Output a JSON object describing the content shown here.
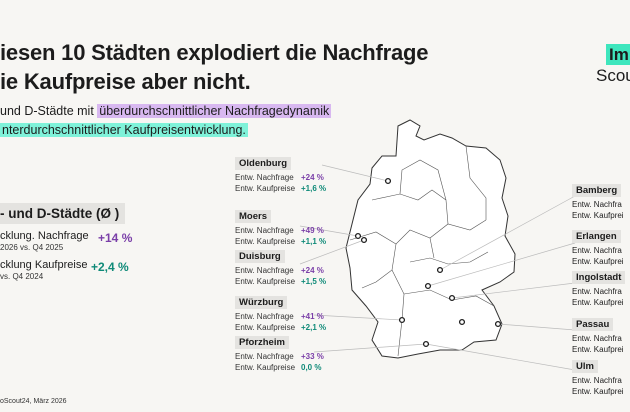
{
  "title": {
    "line1": "iesen 10 Städten explodiert die Nachfrage",
    "line2": "ie Kaufpreise aber nicht."
  },
  "logo": {
    "part1": "Im",
    "part2": "Scou"
  },
  "subtitle": {
    "prefix": "und D-Städte mit",
    "highlight1": "überdurchschnittlicher Nachfragedynamik",
    "highlight2": "nterdurchschnittlicher Kaufpreisentwicklung."
  },
  "average": {
    "heading": "- und D-Städte (Ø )",
    "rows": [
      {
        "label": "cklung. Nachfrage",
        "sub": "2026 vs. Q4 2025",
        "value": "+14 %",
        "color": "#7a3fa8"
      },
      {
        "label": "cklung Kaufpreise",
        "sub": "vs. Q4 2024",
        "value": "+2,4 %",
        "color": "#0f8a78"
      }
    ]
  },
  "source": "oScout24, März 2026",
  "colors": {
    "demand": "#7a3fa8",
    "price": "#0f8a78",
    "accent": "#3ee6bd"
  },
  "cities_left": [
    {
      "name": "Oldenburg",
      "demand_label": "Entw. Nachfrage",
      "demand": "+24 %",
      "price_label": "Entw. Kaufpreise",
      "price": "+1,6 %"
    },
    {
      "name": "Moers",
      "demand_label": "Entw. Nachfrage",
      "demand": "+49 %",
      "price_label": "Entw. Kaufpreise",
      "price": "+1,1 %"
    },
    {
      "name": "Duisburg",
      "demand_label": "Entw. Nachfrage",
      "demand": "+24 %",
      "price_label": "Entw. Kaufpreise",
      "price": "+1,5 %"
    },
    {
      "name": "Würzburg",
      "demand_label": "Entw. Nachfrage",
      "demand": "+41 %",
      "price_label": "Entw. Kaufpreise",
      "price": "+2,1 %"
    },
    {
      "name": "Pforzheim",
      "demand_label": "Entw. Nachfrage",
      "demand": "+33 %",
      "price_label": "Entw. Kaufpreise",
      "price": "0,0 %"
    }
  ],
  "cities_right": [
    {
      "name": "Bamberg",
      "demand_label": "Entw. Nachfra",
      "price_label": "Entw. Kaufprei"
    },
    {
      "name": "Erlangen",
      "demand_label": "Entw. Nachfra",
      "price_label": "Entw. Kaufprei"
    },
    {
      "name": "Ingolstadt",
      "demand_label": "Entw. Nachfra",
      "price_label": "Entw. Kaufprei"
    },
    {
      "name": "Passau",
      "demand_label": "Entw. Nachfra",
      "price_label": "Entw. Kaufprei"
    },
    {
      "name": "Ulm",
      "demand_label": "Entw. Nachfra",
      "price_label": "Entw. Kaufprei"
    }
  ]
}
